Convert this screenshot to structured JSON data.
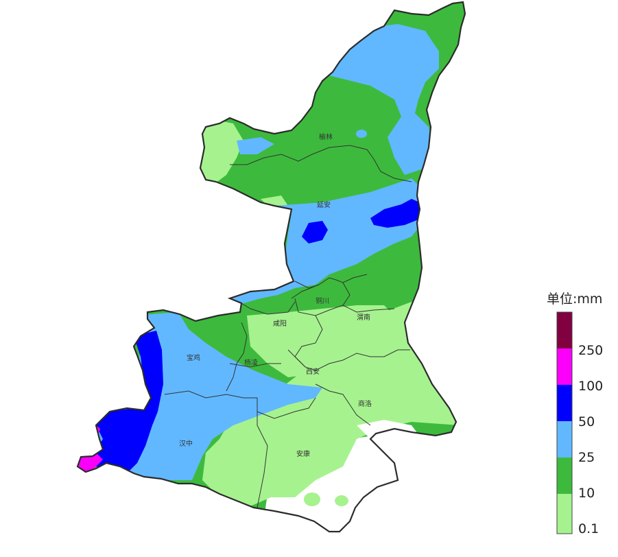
{
  "legend": {
    "title": "单位:mm",
    "classes": [
      {
        "label": "0.1",
        "color": "#a6f28f"
      },
      {
        "label": "10",
        "color": "#3dba3d"
      },
      {
        "label": "25",
        "color": "#61b8ff"
      },
      {
        "label": "50",
        "color": "#0000fe"
      },
      {
        "label": "100",
        "color": "#fa00fa"
      },
      {
        "label": "250",
        "color": "#800040"
      }
    ]
  },
  "cities": {
    "yulin": "榆林",
    "yanan": "延安",
    "tongchuan": "铜川",
    "xianyang": "咸阳",
    "weinan": "渭南",
    "baoji": "宝鸡",
    "yangling": "杨凌",
    "xian": "西安",
    "shangluo": "商洛",
    "hanzhong": "汉中",
    "ankang": "安康"
  },
  "colors": {
    "boundary": "#333333",
    "background": "#ffffff"
  }
}
